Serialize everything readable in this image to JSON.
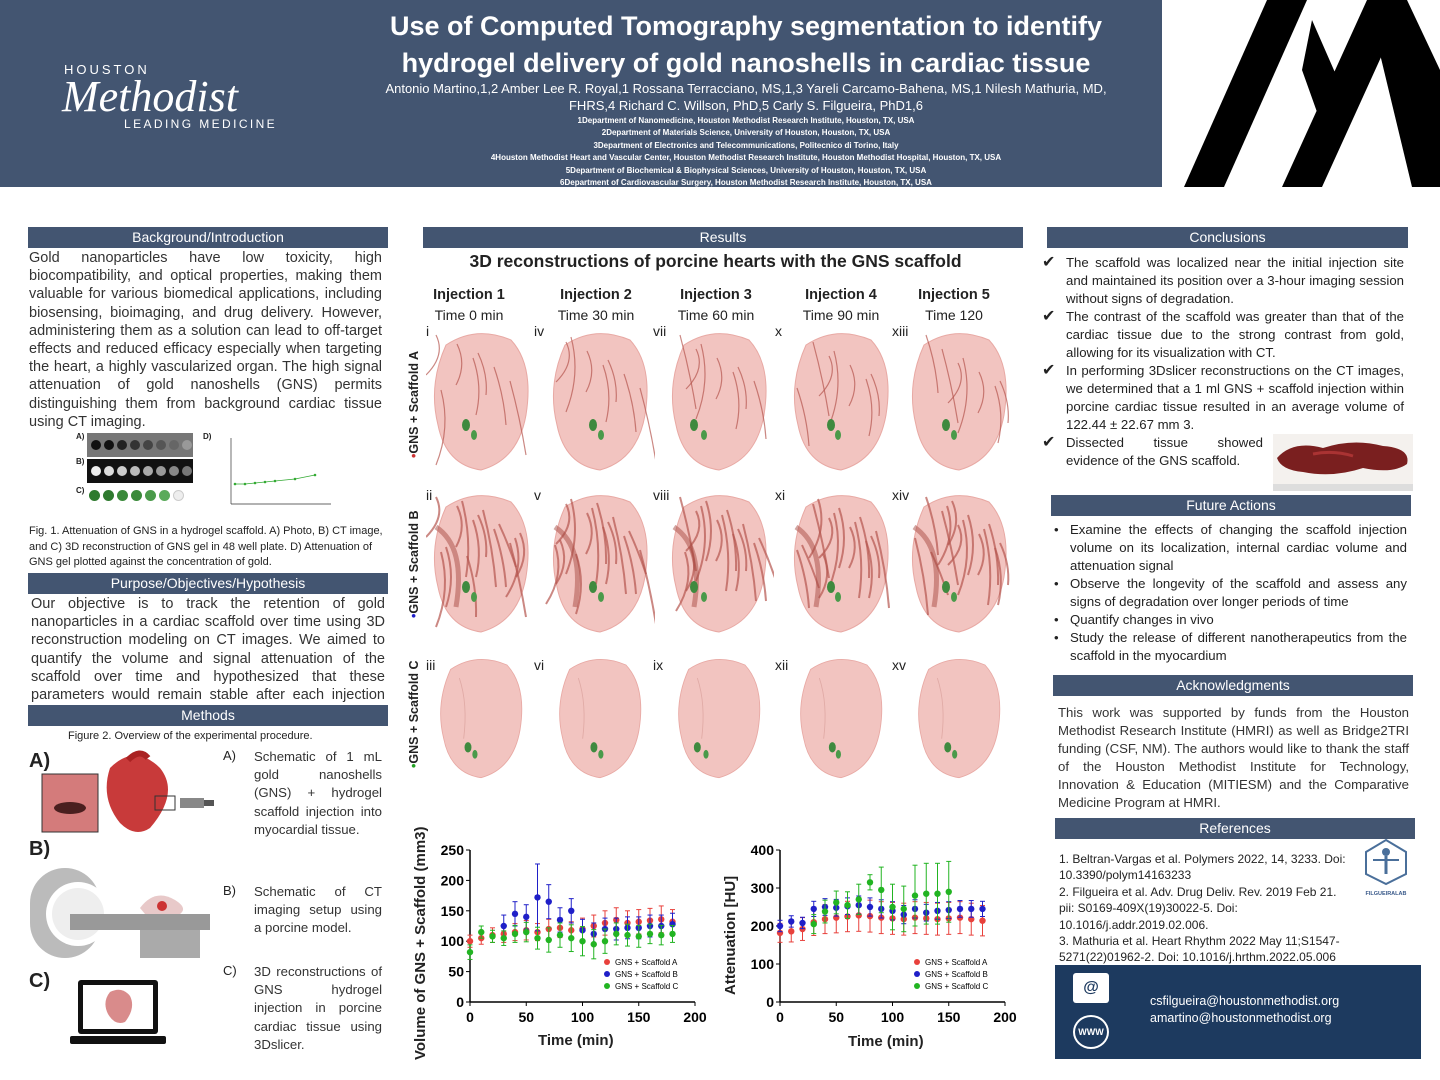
{
  "header": {
    "title": "Use of Computed Tomography segmentation to identify hydrogel delivery of gold nanoshells in cardiac tissue",
    "logo_top": "HOUSTON",
    "logo_main": "Methodist",
    "logo_bottom": "LEADING MEDICINE",
    "authors": "Antonio Martino,1,2 Amber Lee R. Royal,1 Rossana Terracciano, MS,1,3 Yareli Carcamo-Bahena, MS,1 Nilesh Mathuria, MD, FHRS,4 Richard C. Willson, PhD,5 Carly S. Filgueira, PhD1,6",
    "affiliations": [
      "1Department of Nanomedicine, Houston Methodist Research Institute, Houston, TX, USA",
      "2Department of Materials Science, University of Houston, Houston, TX, USA",
      "3Department of Electronics and Telecommunications, Politecnico di Torino, Italy",
      "4Houston Methodist Heart and Vascular Center, Houston Methodist Research Institute, Houston Methodist Hospital, Houston, TX, USA",
      "5Department of Biochemical & Biophysical Sciences, University of Houston, Houston, TX, USA",
      "6Department of Cardiovascular Surgery, Houston Methodist Research Institute, Houston, TX, USA"
    ]
  },
  "background": {
    "heading": "Background/Introduction",
    "text": "Gold nanoparticles have low toxicity, high biocompatibility, and optical properties, making them valuable for various biomedical applications, including biosensing, bioimaging, and drug delivery. However, administering them as a solution can lead to off-target effects and reduced efficacy especially when targeting the heart, a highly vascularized organ. The high signal attenuation of gold nanoshells (GNS) permits distinguishing them from background cardiac tissue using CT imaging.",
    "fig1_caption": "Fig. 1. Attenuation of GNS in a hydrogel scaffold. A) Photo, B) CT image, and C) 3D reconstruction of GNS gel in 48 well plate. D) Attenuation of GNS gel plotted against the concentration of gold.",
    "fig1_labels": [
      "A)",
      "B)",
      "C)",
      "D)"
    ]
  },
  "purpose": {
    "heading": "Purpose/Objectives/Hypothesis",
    "text": "Our objective is to track the retention of gold nanoparticles in a cardiac scaffold over time using 3D reconstruction modeling on CT images. We aimed to quantify the volume and signal attenuation of the scaffold over time and hypothesized that these parameters would remain stable after each injection within the myocardium."
  },
  "methods": {
    "heading": "Methods",
    "fig2_caption": "Figure 2. Overview of the experimental procedure.",
    "items": [
      {
        "label": "A)",
        "text": "Schematic of 1 mL gold nanoshells (GNS) + hydrogel scaffold injection into myocardial tissue."
      },
      {
        "label": "B)",
        "text": "Schematic of CT imaging setup using a porcine model."
      },
      {
        "label": "C)",
        "text": "3D reconstructions of GNS hydrogel injection in porcine cardiac tissue using 3Dslicer."
      }
    ]
  },
  "results": {
    "heading": "Results",
    "subtitle": "3D reconstructions of porcine hearts with the GNS scaffold",
    "injections": [
      {
        "name": "Injection 1",
        "time": "Time 0 min"
      },
      {
        "name": "Injection 2",
        "time": "Time 30 min"
      },
      {
        "name": "Injection 3",
        "time": "Time 60 min"
      },
      {
        "name": "Injection 4",
        "time": "Time 90 min"
      },
      {
        "name": "Injection 5",
        "time": "Time 120"
      }
    ],
    "rows": [
      "GNS + Scaffold A",
      "GNS + Scaffold B",
      "GNS + Scaffold C"
    ],
    "numerals": [
      "i",
      "iv",
      "vii",
      "x",
      "xiii",
      "ii",
      "v",
      "viii",
      "xi",
      "xiv",
      "iii",
      "vi",
      "ix",
      "xii",
      "xv"
    ]
  },
  "conclusions": {
    "heading": "Conclusions",
    "items": [
      "The scaffold was localized near the initial injection site and maintained its position over a 3-hour imaging session without signs of degradation.",
      "The contrast of the scaffold was greater than that of the cardiac tissue due to the strong contrast from gold, allowing for its visualization with CT.",
      "In performing 3Dslicer reconstructions on the CT images, we determined that a 1 ml GNS + scaffold injection within porcine cardiac tissue resulted in an average volume of 122.44 ± 22.67 mm 3.",
      "Dissected tissue showed evidence of the GNS scaffold."
    ]
  },
  "future": {
    "heading": "Future Actions",
    "items": [
      "Examine the effects of changing the scaffold injection volume on its localization, internal cardiac volume and attenuation signal",
      "Observe the longevity of the scaffold and assess any signs of degradation over longer periods of time",
      "Quantify changes in vivo",
      "Study the release of different nanotherapeutics from the scaffold in the myocardium"
    ]
  },
  "ack": {
    "heading": "Acknowledgments",
    "text": "This work was supported by funds from the Houston Methodist Research Institute (HMRI) as well as Bridge2TRI funding (CSF, NM). The authors would like to thank the staff of the Houston Methodist Institute for Technology, Innovation & Education (MITIESM) and the Comparative Medicine Program at HMRI."
  },
  "refs": {
    "heading": "References",
    "items": [
      "1. Beltran-Vargas et al. Polymers 2022, 14, 3233. Doi: 10.3390/polym14163233",
      "2. Filgueira et al. Adv. Drug Deliv. Rev. 2019 Feb 21. pii: S0169-409X(19)30022-5. Doi: 10.1016/j.addr.2019.02.006.",
      "3. Mathuria et al. Heart Rhythm 2022 May 11;S1547-5271(22)01962-2. Doi: 10.1016/j.hrthm.2022.05.006"
    ],
    "logo_text": "FILGUEIRALAB"
  },
  "contact": {
    "emails": [
      "csfilgueira@houstonmethodist.org",
      "amartino@houstonmethodist.org"
    ],
    "email_icon_label": "@",
    "web_icon_label": "WWW"
  },
  "colors": {
    "header": "#435571",
    "series_a": "#e8413c",
    "series_b": "#1f1fc8",
    "series_c": "#22b422"
  },
  "chart_data": [
    {
      "type": "scatter",
      "xlabel": "Time (min)",
      "ylabel": "Volume of GNS + Scaffold (mm3)",
      "xlim": [
        0,
        200
      ],
      "ylim": [
        0,
        250
      ],
      "xticks": [
        0,
        50,
        100,
        150,
        200
      ],
      "yticks": [
        0,
        50,
        100,
        150,
        200,
        250
      ],
      "legend": "bottom-right",
      "series": [
        {
          "name": "GNS + Scaffold A",
          "x": [
            0,
            10,
            20,
            30,
            40,
            50,
            60,
            70,
            80,
            90,
            100,
            110,
            120,
            130,
            140,
            150,
            160,
            170,
            180
          ],
          "y": [
            100,
            105,
            110,
            112,
            115,
            118,
            115,
            120,
            122,
            118,
            120,
            125,
            130,
            135,
            130,
            132,
            134,
            136,
            132
          ],
          "err": [
            10,
            10,
            12,
            14,
            14,
            16,
            14,
            16,
            16,
            14,
            18,
            18,
            20,
            20,
            20,
            20,
            20,
            22,
            20
          ]
        },
        {
          "name": "GNS + Scaffold B",
          "x": [
            30,
            40,
            50,
            60,
            70,
            80,
            90,
            100,
            110,
            120,
            130,
            140,
            150,
            160,
            170,
            180
          ],
          "y": [
            125,
            145,
            140,
            172,
            165,
            135,
            150,
            118,
            112,
            120,
            120,
            122,
            122,
            125,
            125,
            128
          ],
          "err": [
            18,
            20,
            20,
            55,
            28,
            20,
            20,
            18,
            18,
            18,
            18,
            18,
            18,
            18,
            18,
            18
          ],
          "note": ""
        },
        {
          "name": "GNS + Scaffold C",
          "x": [
            0,
            10,
            20,
            30,
            40,
            50,
            60,
            70,
            80,
            90,
            100,
            110,
            120,
            130,
            140,
            150,
            160,
            170,
            180
          ],
          "y": [
            82,
            115,
            108,
            105,
            112,
            115,
            105,
            102,
            110,
            105,
            100,
            95,
            100,
            112,
            110,
            108,
            112,
            110,
            112
          ],
          "err": [
            12,
            10,
            10,
            12,
            14,
            16,
            18,
            20,
            20,
            22,
            24,
            24,
            20,
            18,
            18,
            18,
            16,
            16,
            14
          ]
        }
      ]
    },
    {
      "type": "scatter",
      "xlabel": "Time (min)",
      "ylabel": "Attenuation [HU]",
      "xlim": [
        0,
        200
      ],
      "ylim": [
        0,
        400
      ],
      "xticks": [
        0,
        50,
        100,
        150,
        200
      ],
      "yticks": [
        0,
        100,
        200,
        300,
        400
      ],
      "legend": "bottom-right",
      "series": [
        {
          "name": "GNS + Scaffold A",
          "x": [
            0,
            10,
            20,
            30,
            40,
            50,
            60,
            70,
            80,
            90,
            100,
            110,
            120,
            130,
            140,
            150,
            160,
            170,
            180
          ],
          "y": [
            182,
            186,
            192,
            210,
            218,
            222,
            225,
            228,
            226,
            222,
            220,
            218,
            222,
            220,
            218,
            220,
            222,
            218,
            214
          ],
          "err": [
            25,
            28,
            30,
            35,
            38,
            40,
            40,
            42,
            42,
            42,
            42,
            42,
            42,
            42,
            42,
            42,
            42,
            42,
            40
          ]
        },
        {
          "name": "GNS + Scaffold B",
          "x": [
            0,
            10,
            20,
            30,
            40,
            50,
            60,
            70,
            80,
            90,
            100,
            110,
            120,
            130,
            140,
            150,
            160,
            170,
            180
          ],
          "y": [
            200,
            212,
            208,
            245,
            250,
            248,
            252,
            255,
            250,
            245,
            240,
            230,
            245,
            235,
            240,
            242,
            245,
            245,
            245
          ],
          "err": [
            15,
            15,
            15,
            20,
            22,
            22,
            22,
            24,
            24,
            24,
            24,
            24,
            24,
            22,
            22,
            22,
            22,
            22,
            20
          ]
        },
        {
          "name": "GNS + Scaffold C",
          "x": [
            30,
            40,
            50,
            60,
            70,
            80,
            90,
            100,
            110,
            120,
            130,
            140,
            150
          ],
          "y": [
            205,
            238,
            262,
            255,
            270,
            315,
            295,
            250,
            245,
            280,
            285,
            285,
            290
          ],
          "err": [
            25,
            30,
            30,
            35,
            40,
            20,
            60,
            60,
            60,
            80,
            80,
            80,
            80
          ]
        }
      ]
    }
  ]
}
